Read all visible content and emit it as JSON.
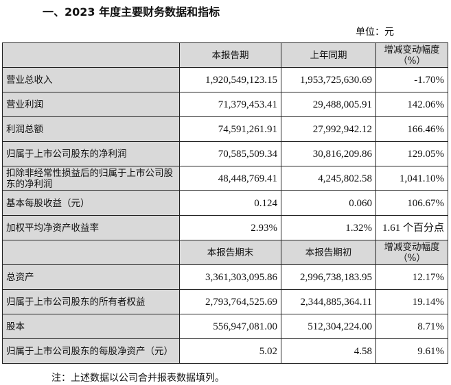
{
  "title": "一、2023 年度主要财务数据和指标",
  "unit": "单位：元",
  "header1": [
    "",
    "本报告期",
    "上年同期",
    "增减变动幅度（%）"
  ],
  "rows1": [
    [
      "营业总收入",
      "1,920,549,123.15",
      "1,953,725,630.69",
      "-1.70%"
    ],
    [
      "营业利润",
      "71,379,453.41",
      "29,488,005.91",
      "142.06%"
    ],
    [
      "利润总额",
      "74,591,261.91",
      "27,992,942.12",
      "166.46%"
    ],
    [
      "归属于上市公司股东的净利润",
      "70,585,509.34",
      "30,816,209.86",
      "129.05%"
    ],
    [
      "扣除非经常性损益后的归属于上市公司股东的净利润",
      "48,448,769.41",
      "4,245,802.58",
      "1,041.10%"
    ],
    [
      "基本每股收益（元）",
      "0.124",
      "0.060",
      "106.67%"
    ],
    [
      "加权平均净资产收益率",
      "2.93%",
      "1.32%",
      "1.61 个百分点"
    ]
  ],
  "header2": [
    "",
    "本报告期末",
    "本报告期初",
    "增减变动幅度（%）"
  ],
  "rows2": [
    [
      "总资产",
      "3,361,303,095.86",
      "2,996,738,183.95",
      "12.17%"
    ],
    [
      "归属于上市公司股东的所有者权益",
      "2,793,764,525.69",
      "2,344,885,364.11",
      "19.14%"
    ],
    [
      "股本",
      "556,947,081.00",
      "512,304,224.00",
      "8.71%"
    ],
    [
      "归属于上市公司股东的每股净资产（元）",
      "5.02",
      "4.58",
      "9.61%"
    ]
  ],
  "note": "注：上述数据以公司合并报表数据填列。"
}
